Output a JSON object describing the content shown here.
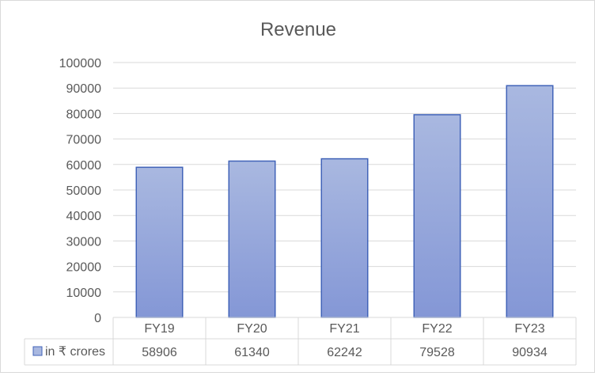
{
  "chart_data": {
    "type": "bar",
    "title": "Revenue",
    "categories": [
      "FY19",
      "FY20",
      "FY21",
      "FY22",
      "FY23"
    ],
    "series": [
      {
        "name": "in ₹ crores",
        "values": [
          58906,
          61340,
          62242,
          79528,
          90934
        ]
      }
    ],
    "ylim": [
      0,
      100000
    ],
    "yticks": [
      0,
      10000,
      20000,
      30000,
      40000,
      50000,
      60000,
      70000,
      80000,
      90000,
      100000
    ],
    "grid": true,
    "legend": "data-table",
    "data_table": true,
    "colors": {
      "bar_top": "#a9b8e0",
      "bar_bottom": "#8497d6",
      "bar_border": "#4163b8",
      "grid": "#d9d9d9",
      "text": "#595959"
    }
  }
}
